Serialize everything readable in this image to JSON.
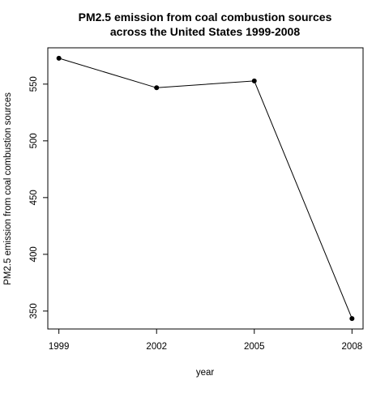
{
  "chart_data": {
    "type": "line",
    "title_line1": "PM2.5 emission from coal combustion sources",
    "title_line2": "across the United States 1999-2008",
    "xlabel": "year",
    "ylabel": "PM2.5 emission from coal combustion sources",
    "x": [
      1999,
      2002,
      2005,
      2008
    ],
    "x_tick_labels": [
      "1999",
      "2002",
      "2005",
      "2008"
    ],
    "y": [
      572.8,
      546.8,
      552.8,
      343.4
    ],
    "y_ticks": [
      350,
      400,
      450,
      500,
      550
    ],
    "y_tick_labels": [
      "350",
      "400",
      "450",
      "500",
      "550"
    ],
    "xlim": [
      1998.66,
      2008.34
    ],
    "ylim": [
      334.2,
      582.0
    ],
    "grid": false,
    "line_color": "#000000",
    "point_style": "filled-circle"
  }
}
